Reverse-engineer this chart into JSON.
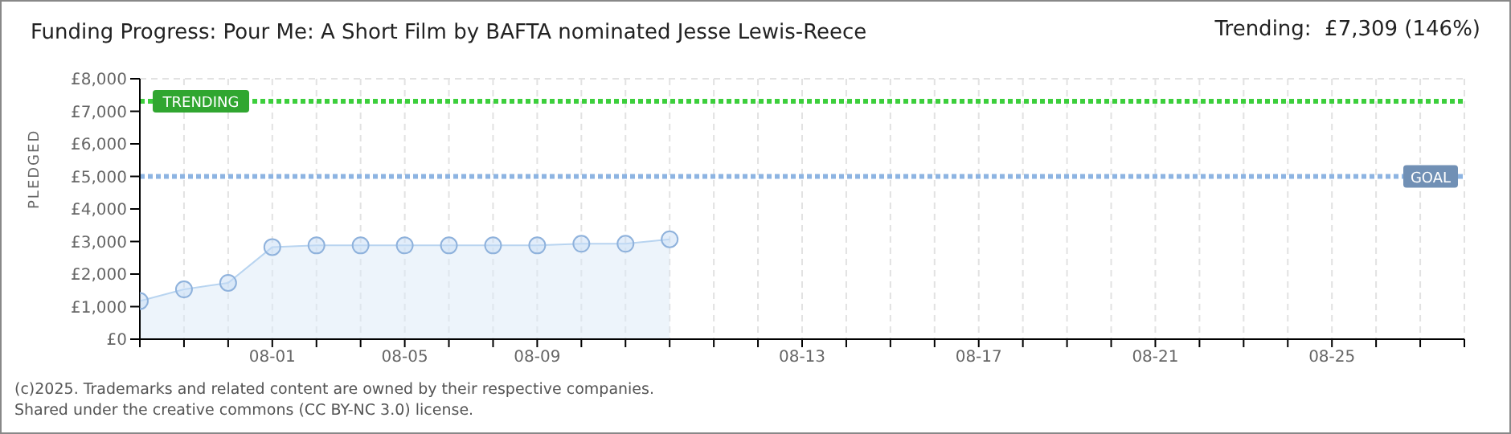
{
  "chart_data": {
    "type": "area",
    "title": "Funding Progress: Pour Me: A Short Film by BAFTA nominated Jesse Lewis-Reece",
    "subtitle": "Trending:  £7,309 (146%)",
    "ylabel": "PLEDGED",
    "categories": [
      null,
      null,
      null,
      "08-01",
      null,
      null,
      "08-05",
      null,
      null,
      "08-09",
      null,
      null,
      null,
      null,
      null,
      "08-13",
      null,
      null,
      null,
      "08-17",
      null,
      null,
      null,
      "08-21",
      null,
      null,
      null,
      "08-25",
      null,
      null,
      null
    ],
    "series": [
      {
        "color": "#b8d4f0",
        "values": [
          1170,
          1530,
          1730,
          2830,
          2880,
          2880,
          2880,
          2880,
          2880,
          2880,
          2930,
          2930,
          3070,
          null,
          null,
          null,
          null,
          null,
          null,
          null,
          null,
          null,
          null,
          null,
          null,
          null,
          null,
          null,
          null,
          null,
          null
        ]
      }
    ],
    "ylim": [
      0,
      8000
    ],
    "yticks": [
      {
        "value": 0,
        "label": "£0"
      },
      {
        "value": 1000,
        "label": "£1,000"
      },
      {
        "value": 2000,
        "label": "£2,000"
      },
      {
        "value": 3000,
        "label": "£3,000"
      },
      {
        "value": 4000,
        "label": "£4,000"
      },
      {
        "value": 5000,
        "label": "£5,000"
      },
      {
        "value": 6000,
        "label": "£6,000"
      },
      {
        "value": 7000,
        "label": "£7,000"
      },
      {
        "value": 8000,
        "label": "£8,000"
      }
    ],
    "grid": true,
    "marker": "circle",
    "ref_lines": [
      {
        "axis": "y",
        "value": 7309,
        "label": "TRENDING",
        "color": "#3ccf3c",
        "line_style": "dotted"
      },
      {
        "axis": "y",
        "value": 5000,
        "label": "GOAL",
        "color": "#8db4e2",
        "line_style": "dotted"
      }
    ],
    "annotations": [
      "(c)2025. Trademarks and related content are owned by their respective companies.",
      "Shared under the creative commons (CC BY-NC 3.0) license."
    ]
  }
}
